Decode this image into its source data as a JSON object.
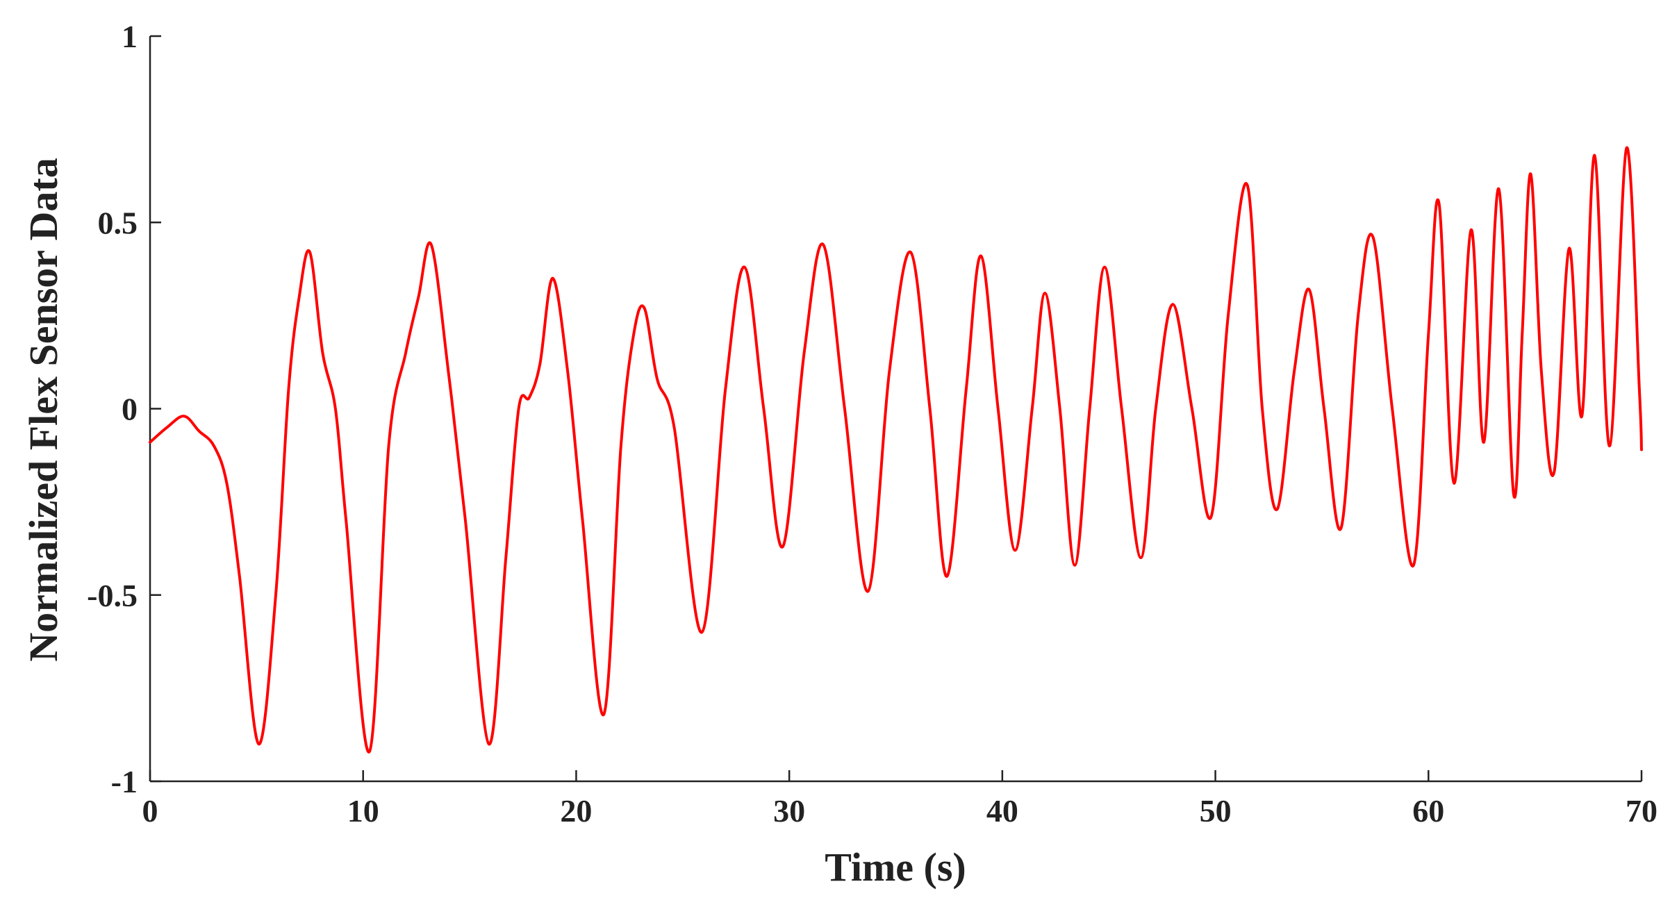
{
  "chart_data": {
    "type": "line",
    "title": "",
    "xlabel": "Time (s)",
    "ylabel": "Normalized Flex Sensor Data",
    "xlim": [
      0,
      70
    ],
    "ylim": [
      -1,
      1
    ],
    "grid": false,
    "legend": "none",
    "x_ticks": [
      0,
      10,
      20,
      30,
      40,
      50,
      60,
      70
    ],
    "y_ticks": [
      -1,
      -0.5,
      0,
      0.5,
      1
    ],
    "x_tick_labels": [
      "0",
      "10",
      "20",
      "30",
      "40",
      "50",
      "60",
      "70"
    ],
    "y_tick_labels": [
      "-1",
      "-0.5",
      "0",
      "0.5",
      "1"
    ],
    "series": [
      {
        "color": "#ff0000",
        "x": [
          0,
          0.8,
          1.6,
          2.3,
          3.0,
          3.6,
          4.2,
          5.1,
          5.9,
          6.5,
          7.0,
          7.5,
          8.1,
          8.7,
          9.2,
          10.3,
          11.2,
          12.0,
          12.6,
          13.2,
          14.0,
          14.8,
          15.9,
          16.7,
          17.3,
          17.8,
          18.3,
          18.9,
          19.6,
          20.3,
          21.3,
          22.1,
          22.7,
          23.2,
          23.8,
          24.6,
          25.9,
          27.0,
          27.9,
          28.8,
          29.7,
          30.7,
          31.6,
          32.6,
          33.7,
          34.7,
          35.7,
          36.6,
          37.4,
          38.3,
          39.0,
          39.8,
          40.6,
          41.4,
          42.0,
          42.7,
          43.4,
          44.1,
          44.8,
          45.6,
          46.5,
          47.2,
          48.0,
          48.9,
          49.8,
          50.6,
          51.5,
          52.2,
          52.9,
          53.7,
          54.4,
          55.1,
          55.9,
          56.7,
          57.4,
          58.3,
          59.3,
          60.0,
          60.5,
          61.2,
          62.0,
          62.6,
          63.3,
          64.0,
          64.4,
          64.8,
          65.3,
          65.9,
          66.6,
          67.2,
          67.8,
          68.5,
          69.3,
          69.9,
          70.0
        ],
        "y": [
          -0.09,
          -0.05,
          -0.02,
          -0.06,
          -0.1,
          -0.2,
          -0.45,
          -0.9,
          -0.5,
          0.05,
          0.3,
          0.42,
          0.15,
          0.0,
          -0.3,
          -0.92,
          -0.1,
          0.15,
          0.3,
          0.44,
          0.1,
          -0.3,
          -0.9,
          -0.4,
          0.0,
          0.03,
          0.12,
          0.35,
          0.1,
          -0.3,
          -0.82,
          -0.1,
          0.2,
          0.27,
          0.08,
          -0.05,
          -0.6,
          0.05,
          0.38,
          0.0,
          -0.37,
          0.15,
          0.44,
          0.0,
          -0.49,
          0.1,
          0.42,
          0.0,
          -0.45,
          0.05,
          0.41,
          0.0,
          -0.38,
          0.0,
          0.31,
          0.0,
          -0.42,
          0.0,
          0.38,
          0.0,
          -0.4,
          0.0,
          0.28,
          0.0,
          -0.29,
          0.25,
          0.6,
          0.0,
          -0.27,
          0.1,
          0.32,
          0.0,
          -0.32,
          0.25,
          0.46,
          0.0,
          -0.42,
          0.2,
          0.55,
          -0.2,
          0.48,
          -0.09,
          0.59,
          -0.23,
          0.2,
          0.63,
          0.1,
          -0.17,
          0.43,
          -0.02,
          0.68,
          -0.1,
          0.7,
          0.05,
          -0.11
        ]
      }
    ]
  }
}
